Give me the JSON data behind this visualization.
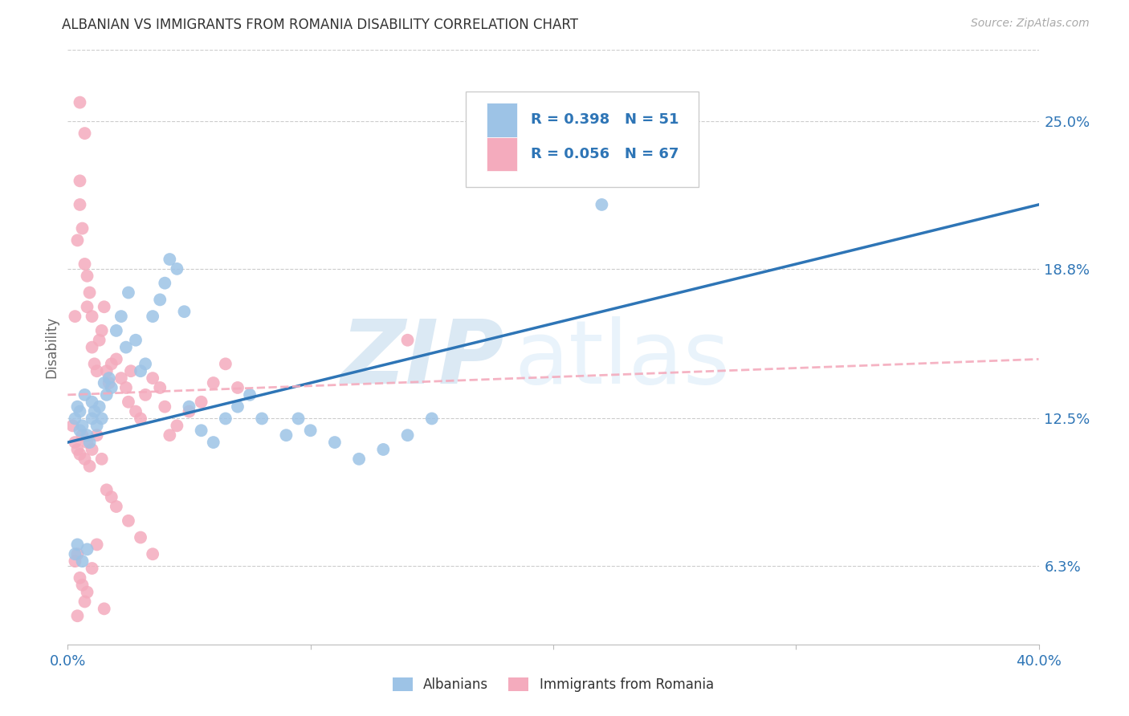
{
  "title": "ALBANIAN VS IMMIGRANTS FROM ROMANIA DISABILITY CORRELATION CHART",
  "source": "Source: ZipAtlas.com",
  "ylabel": "Disability",
  "xlim": [
    0.0,
    0.4
  ],
  "ylim": [
    0.03,
    0.28
  ],
  "ytick_labels_right": [
    "25.0%",
    "18.8%",
    "12.5%",
    "6.3%"
  ],
  "ytick_vals_right": [
    0.25,
    0.188,
    0.125,
    0.063
  ],
  "legend_r1": "R = 0.398",
  "legend_n1": "N = 51",
  "legend_r2": "R = 0.056",
  "legend_n2": "N = 67",
  "legend_label1": "Albanians",
  "legend_label2": "Immigrants from Romania",
  "color_blue": "#9DC3E6",
  "color_pink": "#F4ABBD",
  "color_blue_line": "#2E75B6",
  "color_pink_line": "#F4ABBD",
  "color_text_blue": "#2E75B6",
  "blue_line_x0": 0.0,
  "blue_line_y0": 0.115,
  "blue_line_x1": 0.4,
  "blue_line_y1": 0.215,
  "pink_line_x0": 0.0,
  "pink_line_y0": 0.135,
  "pink_line_x1": 0.4,
  "pink_line_y1": 0.15,
  "blue_scatter_x": [
    0.003,
    0.004,
    0.005,
    0.005,
    0.006,
    0.007,
    0.008,
    0.009,
    0.01,
    0.01,
    0.011,
    0.012,
    0.013,
    0.014,
    0.015,
    0.016,
    0.017,
    0.018,
    0.02,
    0.022,
    0.024,
    0.025,
    0.028,
    0.03,
    0.032,
    0.035,
    0.038,
    0.04,
    0.042,
    0.045,
    0.048,
    0.05,
    0.055,
    0.06,
    0.065,
    0.07,
    0.075,
    0.08,
    0.09,
    0.095,
    0.1,
    0.11,
    0.12,
    0.13,
    0.14,
    0.15,
    0.003,
    0.004,
    0.006,
    0.008,
    0.22
  ],
  "blue_scatter_y": [
    0.125,
    0.13,
    0.12,
    0.128,
    0.122,
    0.135,
    0.118,
    0.115,
    0.125,
    0.132,
    0.128,
    0.122,
    0.13,
    0.125,
    0.14,
    0.135,
    0.142,
    0.138,
    0.162,
    0.168,
    0.155,
    0.178,
    0.158,
    0.145,
    0.148,
    0.168,
    0.175,
    0.182,
    0.192,
    0.188,
    0.17,
    0.13,
    0.12,
    0.115,
    0.125,
    0.13,
    0.135,
    0.125,
    0.118,
    0.125,
    0.12,
    0.115,
    0.108,
    0.112,
    0.118,
    0.125,
    0.068,
    0.072,
    0.065,
    0.07,
    0.215
  ],
  "pink_scatter_x": [
    0.002,
    0.003,
    0.004,
    0.005,
    0.005,
    0.006,
    0.007,
    0.008,
    0.008,
    0.009,
    0.01,
    0.01,
    0.011,
    0.012,
    0.013,
    0.014,
    0.015,
    0.016,
    0.017,
    0.018,
    0.02,
    0.022,
    0.024,
    0.025,
    0.026,
    0.028,
    0.03,
    0.032,
    0.035,
    0.038,
    0.04,
    0.042,
    0.045,
    0.05,
    0.055,
    0.06,
    0.065,
    0.07,
    0.003,
    0.004,
    0.005,
    0.006,
    0.007,
    0.008,
    0.009,
    0.01,
    0.012,
    0.014,
    0.016,
    0.018,
    0.02,
    0.025,
    0.03,
    0.035,
    0.14,
    0.003,
    0.004,
    0.005,
    0.006,
    0.007,
    0.008,
    0.01,
    0.012,
    0.015,
    0.005,
    0.007,
    0.004
  ],
  "pink_scatter_y": [
    0.122,
    0.168,
    0.2,
    0.215,
    0.225,
    0.205,
    0.19,
    0.185,
    0.172,
    0.178,
    0.168,
    0.155,
    0.148,
    0.145,
    0.158,
    0.162,
    0.172,
    0.145,
    0.14,
    0.148,
    0.15,
    0.142,
    0.138,
    0.132,
    0.145,
    0.128,
    0.125,
    0.135,
    0.142,
    0.138,
    0.13,
    0.118,
    0.122,
    0.128,
    0.132,
    0.14,
    0.148,
    0.138,
    0.115,
    0.112,
    0.11,
    0.118,
    0.108,
    0.115,
    0.105,
    0.112,
    0.118,
    0.108,
    0.095,
    0.092,
    0.088,
    0.082,
    0.075,
    0.068,
    0.158,
    0.065,
    0.068,
    0.058,
    0.055,
    0.048,
    0.052,
    0.062,
    0.072,
    0.045,
    0.258,
    0.245,
    0.042
  ]
}
